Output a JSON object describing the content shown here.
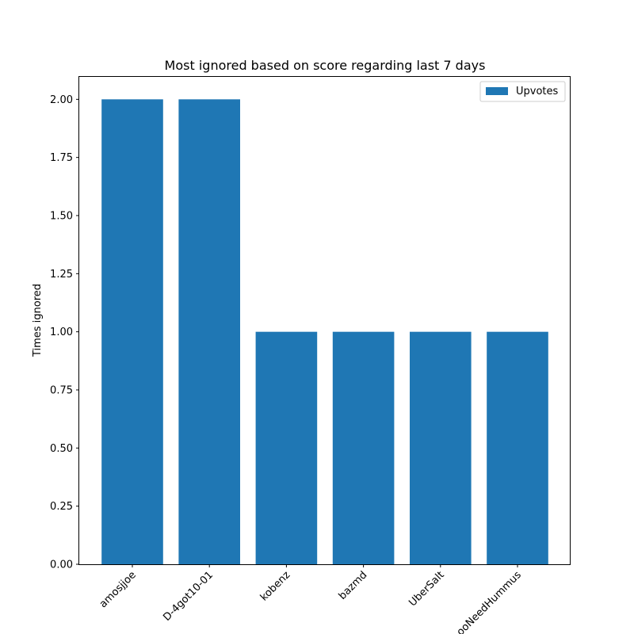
{
  "chart_data": {
    "type": "bar",
    "title": "Most ignored based on score regarding last 7 days",
    "xlabel": "",
    "ylabel": "Times ignored",
    "categories": [
      "amosjjoe",
      "D-4got10-01",
      "kobenz",
      "bazmd",
      "UberSalt",
      "ooNeedHummus"
    ],
    "series": [
      {
        "name": "Upvotes",
        "values": [
          2,
          2,
          1,
          1,
          1,
          1
        ],
        "color": "#1f77b4"
      }
    ],
    "ylim": [
      0,
      2.1
    ],
    "yticks": [
      "0.00",
      "0.25",
      "0.50",
      "0.75",
      "1.00",
      "1.25",
      "1.50",
      "1.75",
      "2.00"
    ],
    "grid": false,
    "legend_position": "top-right"
  }
}
